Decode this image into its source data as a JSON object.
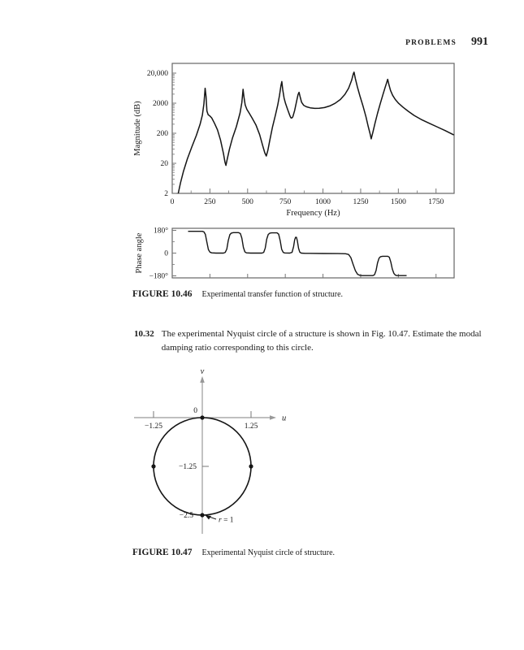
{
  "page": {
    "header_label": "PROBLEMS",
    "page_number": "991"
  },
  "figure_10_46": {
    "caption_label": "FIGURE 10.46",
    "caption_text": "Experimental transfer function of structure."
  },
  "problem_10_32": {
    "number": "10.32",
    "text_lines": [
      "The experimental Nyquist circle of a structure is shown in Fig. 10.47. Estimate the modal",
      "damping ratio corresponding to this circle."
    ]
  },
  "figure_10_47": {
    "caption_label": "FIGURE 10.47",
    "caption_text": "Experimental Nyquist circle of structure."
  },
  "colors": {
    "ink": "#1a1a1a",
    "curve": "#151515",
    "frame": "#666666",
    "tick": "#777777",
    "axis": "#999999"
  },
  "chart_data": [
    {
      "type": "line",
      "title": "Magnitude plot of experimental transfer function",
      "xlabel": "Frequency (Hz)",
      "ylabel": "Magnitude (dB)",
      "xlim": [
        0,
        1870
      ],
      "ylim": [
        2,
        42000
      ],
      "y_scale": "log",
      "x_major_ticks": [
        0,
        250,
        500,
        750,
        1000,
        1250,
        1500,
        1750
      ],
      "x_minor_step": 125,
      "y_ticks": [
        {
          "value": 2,
          "label": "2"
        },
        {
          "value": 20,
          "label": "20"
        },
        {
          "value": 200,
          "label": "200"
        },
        {
          "value": 2000,
          "label": "2000"
        },
        {
          "value": 20000,
          "label": "20,000"
        }
      ],
      "grid": false,
      "points": [
        [
          40,
          2
        ],
        [
          55,
          4.5
        ],
        [
          75,
          11
        ],
        [
          100,
          28
        ],
        [
          130,
          70
        ],
        [
          160,
          170
        ],
        [
          185,
          400
        ],
        [
          200,
          800
        ],
        [
          210,
          1900
        ],
        [
          218,
          6300
        ],
        [
          224,
          3400
        ],
        [
          230,
          1100
        ],
        [
          238,
          830
        ],
        [
          250,
          750
        ],
        [
          262,
          650
        ],
        [
          280,
          430
        ],
        [
          300,
          260
        ],
        [
          320,
          120
        ],
        [
          340,
          42
        ],
        [
          350,
          22
        ],
        [
          356,
          17
        ],
        [
          364,
          26
        ],
        [
          380,
          60
        ],
        [
          400,
          140
        ],
        [
          425,
          330
        ],
        [
          450,
          950
        ],
        [
          462,
          2100
        ],
        [
          470,
          5800
        ],
        [
          476,
          3200
        ],
        [
          484,
          1750
        ],
        [
          495,
          1250
        ],
        [
          510,
          950
        ],
        [
          530,
          640
        ],
        [
          555,
          380
        ],
        [
          580,
          180
        ],
        [
          600,
          78
        ],
        [
          614,
          45
        ],
        [
          624,
          35
        ],
        [
          634,
          52
        ],
        [
          648,
          120
        ],
        [
          665,
          320
        ],
        [
          685,
          820
        ],
        [
          700,
          1750
        ],
        [
          712,
          3700
        ],
        [
          721,
          7600
        ],
        [
          727,
          10500
        ],
        [
          733,
          5700
        ],
        [
          742,
          2950
        ],
        [
          752,
          1950
        ],
        [
          765,
          1250
        ],
        [
          778,
          820
        ],
        [
          786,
          660
        ],
        [
          792,
          640
        ],
        [
          800,
          700
        ],
        [
          812,
          1150
        ],
        [
          824,
          2200
        ],
        [
          834,
          3800
        ],
        [
          841,
          4600
        ],
        [
          848,
          3300
        ],
        [
          858,
          2150
        ],
        [
          872,
          1700
        ],
        [
          890,
          1520
        ],
        [
          915,
          1400
        ],
        [
          945,
          1340
        ],
        [
          975,
          1350
        ],
        [
          1010,
          1430
        ],
        [
          1045,
          1620
        ],
        [
          1080,
          1980
        ],
        [
          1115,
          2650
        ],
        [
          1145,
          3900
        ],
        [
          1170,
          6300
        ],
        [
          1190,
          11500
        ],
        [
          1201,
          19000
        ],
        [
          1206,
          21500
        ],
        [
          1214,
          13500
        ],
        [
          1228,
          7000
        ],
        [
          1245,
          3500
        ],
        [
          1265,
          1650
        ],
        [
          1285,
          720
        ],
        [
          1300,
          340
        ],
        [
          1312,
          195
        ],
        [
          1320,
          130
        ],
        [
          1330,
          205
        ],
        [
          1345,
          430
        ],
        [
          1362,
          920
        ],
        [
          1380,
          1950
        ],
        [
          1398,
          3900
        ],
        [
          1412,
          6600
        ],
        [
          1422,
          9600
        ],
        [
          1429,
          12500
        ],
        [
          1437,
          8300
        ],
        [
          1448,
          5300
        ],
        [
          1462,
          3650
        ],
        [
          1480,
          2650
        ],
        [
          1502,
          1980
        ],
        [
          1530,
          1480
        ],
        [
          1565,
          1080
        ],
        [
          1605,
          780
        ],
        [
          1650,
          580
        ],
        [
          1700,
          440
        ],
        [
          1755,
          330
        ],
        [
          1810,
          245
        ],
        [
          1868,
          175
        ]
      ]
    },
    {
      "type": "line",
      "title": "Phase plot of experimental transfer function",
      "xlabel": "",
      "ylabel": "Phase angle",
      "xlim": [
        0,
        1870
      ],
      "ylim": [
        -180,
        180
      ],
      "x_major_ticks": [
        250,
        500,
        750,
        1000,
        1250,
        1500,
        1750
      ],
      "y_ticks": [
        {
          "value": 180,
          "label": "180°"
        },
        {
          "value": 0,
          "label": "0"
        },
        {
          "value": -180,
          "label": "−180°"
        }
      ],
      "y_minor_ticks": [
        90,
        -90
      ],
      "grid": false,
      "points": [
        [
          105,
          172
        ],
        [
          200,
          172
        ],
        [
          210,
          168
        ],
        [
          220,
          148
        ],
        [
          230,
          85
        ],
        [
          240,
          28
        ],
        [
          250,
          8
        ],
        [
          262,
          2
        ],
        [
          290,
          0
        ],
        [
          340,
          0
        ],
        [
          352,
          6
        ],
        [
          362,
          32
        ],
        [
          372,
          100
        ],
        [
          382,
          145
        ],
        [
          392,
          158
        ],
        [
          405,
          162
        ],
        [
          440,
          162
        ],
        [
          452,
          154
        ],
        [
          462,
          118
        ],
        [
          472,
          45
        ],
        [
          482,
          10
        ],
        [
          492,
          2
        ],
        [
          520,
          0
        ],
        [
          595,
          0
        ],
        [
          607,
          6
        ],
        [
          617,
          40
        ],
        [
          627,
          110
        ],
        [
          637,
          148
        ],
        [
          648,
          158
        ],
        [
          660,
          160
        ],
        [
          695,
          160
        ],
        [
          706,
          150
        ],
        [
          716,
          98
        ],
        [
          726,
          30
        ],
        [
          736,
          6
        ],
        [
          746,
          1
        ],
        [
          780,
          0
        ],
        [
          795,
          6
        ],
        [
          805,
          52
        ],
        [
          812,
          105
        ],
        [
          818,
          125
        ],
        [
          824,
          125
        ],
        [
          830,
          98
        ],
        [
          838,
          38
        ],
        [
          846,
          8
        ],
        [
          856,
          0
        ],
        [
          880,
          -2
        ],
        [
          1000,
          -3
        ],
        [
          1100,
          -4
        ],
        [
          1150,
          -5
        ],
        [
          1170,
          -11
        ],
        [
          1185,
          -36
        ],
        [
          1200,
          -90
        ],
        [
          1215,
          -140
        ],
        [
          1230,
          -168
        ],
        [
          1245,
          -176
        ],
        [
          1260,
          -178
        ],
        [
          1330,
          -178
        ],
        [
          1342,
          -171
        ],
        [
          1352,
          -138
        ],
        [
          1362,
          -78
        ],
        [
          1372,
          -40
        ],
        [
          1382,
          -28
        ],
        [
          1395,
          -25
        ],
        [
          1430,
          -25
        ],
        [
          1440,
          -33
        ],
        [
          1450,
          -72
        ],
        [
          1460,
          -126
        ],
        [
          1470,
          -160
        ],
        [
          1480,
          -174
        ],
        [
          1490,
          -178
        ],
        [
          1555,
          -178
        ]
      ]
    },
    {
      "type": "scatter",
      "title": "Experimental Nyquist circle",
      "xlabel": "u",
      "ylabel": "v",
      "circle": {
        "center": [
          0,
          -1.25
        ],
        "radius": 1.25
      },
      "radius_label": "r = 1",
      "marked_points": [
        [
          0,
          0
        ],
        [
          -1.25,
          -1.25
        ],
        [
          1.25,
          -1.25
        ],
        [
          0,
          -2.5
        ]
      ],
      "u_ticks": [
        {
          "value": -1.25,
          "label": "−1.25"
        },
        {
          "value": 1.25,
          "label": "1.25"
        }
      ],
      "v_labels": [
        {
          "value": 0,
          "label": "0",
          "tick": false
        },
        {
          "value": -1.25,
          "label": "−1.25",
          "tick": true
        },
        {
          "value": -2.5,
          "label": "−2.5",
          "tick": false
        }
      ],
      "grid": false
    }
  ]
}
